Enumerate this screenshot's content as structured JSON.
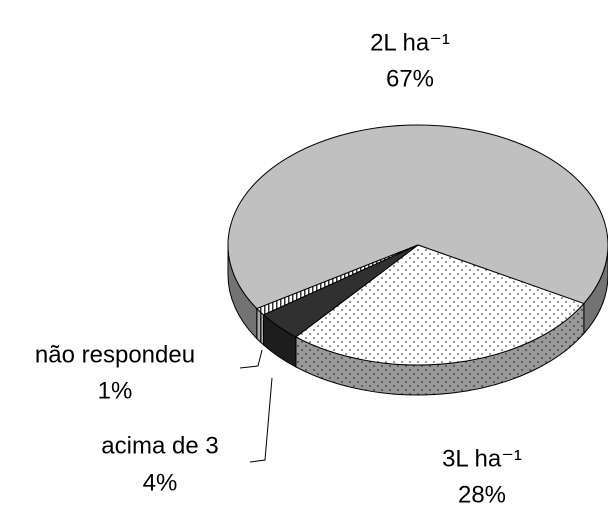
{
  "chart_data": {
    "type": "pie3d",
    "categories": [
      "2L ha⁻¹",
      "3L ha⁻¹",
      "acima de 3",
      "não respondeu"
    ],
    "values": [
      67,
      28,
      4,
      1
    ],
    "value_labels": [
      "67%",
      "28%",
      "4%",
      "1%"
    ],
    "colors": [
      "#c0c0c0",
      "#ffffff",
      "#303030",
      "#ffffff"
    ],
    "patterns": [
      "solid",
      "dots",
      "solid",
      "stripes"
    ]
  }
}
